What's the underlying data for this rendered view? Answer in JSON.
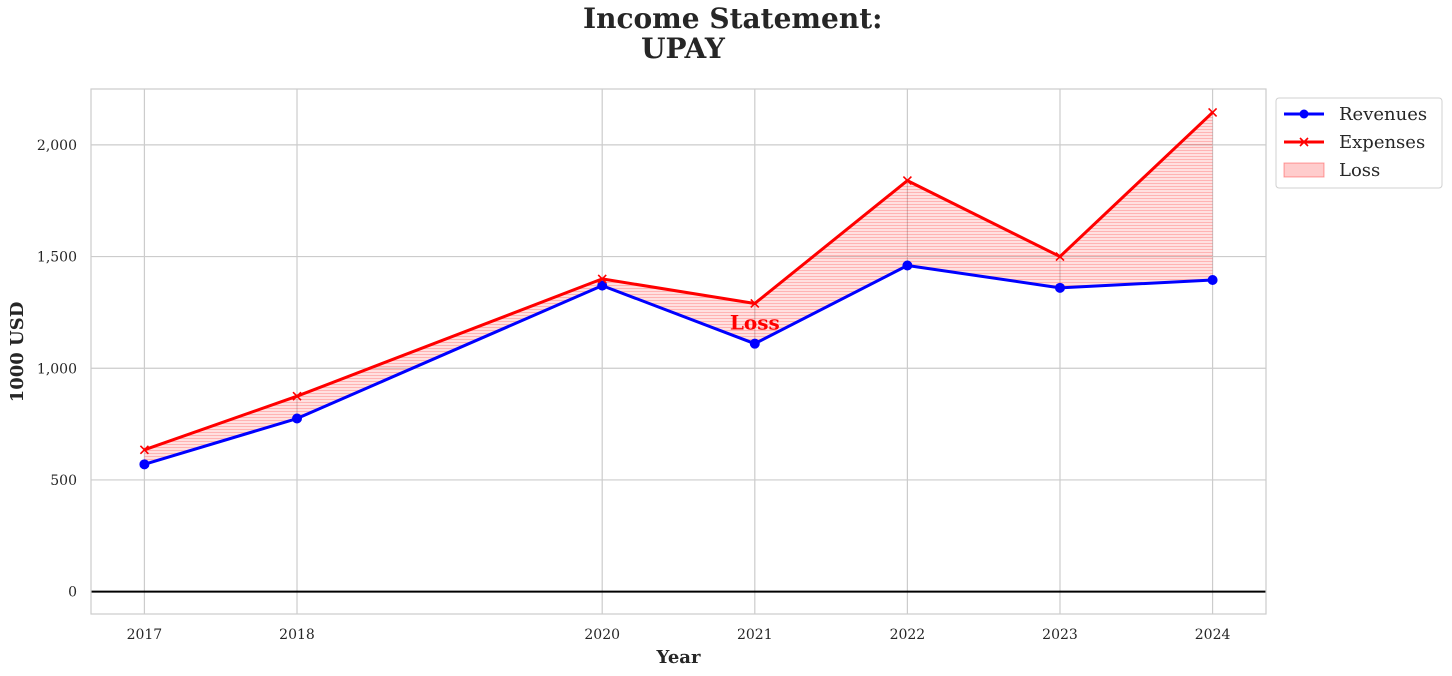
{
  "chart_data": {
    "type": "line",
    "title_line1": "Income Statement:",
    "title_line2": "UPAY",
    "xlabel": "Year",
    "ylabel": "1000 USD",
    "x": [
      2017,
      2018,
      2020,
      2021,
      2022,
      2023,
      2024
    ],
    "x_tick_labels": [
      "2017",
      "2018",
      "2020",
      "2021",
      "2022",
      "2023",
      "2024"
    ],
    "xlim": [
      2016.65,
      2024.35
    ],
    "ylim": [
      -100,
      2250
    ],
    "y_ticks": [
      0,
      500,
      1000,
      1500,
      2000
    ],
    "y_tick_labels": [
      "0",
      "500",
      "1,000",
      "1,500",
      "2,000"
    ],
    "grid": true,
    "zero_line": true,
    "legend_position": "outside upper-right",
    "series": [
      {
        "name": "Revenues",
        "color": "#0000ff",
        "marker": "circle",
        "values": [
          570,
          775,
          1370,
          1110,
          1460,
          1360,
          1395
        ]
      },
      {
        "name": "Expenses",
        "color": "#ff0000",
        "marker": "x",
        "values": [
          635,
          875,
          1400,
          1290,
          1840,
          1500,
          2145
        ]
      }
    ],
    "fill": {
      "name": "Loss",
      "color": "#ff0000",
      "opacity": 0.15,
      "between": [
        "Revenues",
        "Expenses"
      ]
    },
    "annotations": [
      {
        "text": "Loss",
        "x": 2021,
        "y": 1205,
        "color": "#ff0000"
      }
    ]
  }
}
